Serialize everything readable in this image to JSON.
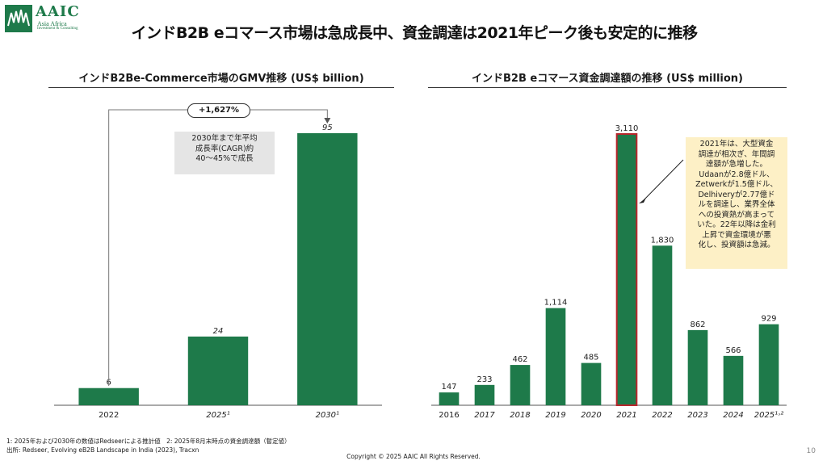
{
  "logo": {
    "main": "AAIC",
    "sub1": "Asia Africa",
    "sub2": "Investment & Consulting"
  },
  "title": "インドB2B eコマース市場は急成長中、資金調達は2021年ピーク後も安定的に推移",
  "left_note": {
    "lines": [
      "2030年まで年平均",
      "成長率(CAGR)約",
      "40〜45%で成長"
    ]
  },
  "cagr_label": "+1,627%",
  "callout": {
    "lines": [
      "2021年は、大型資金",
      "調達が相次ぎ、年間調",
      "達額が急増した。",
      "Udaanが2.8億ドル、",
      "Zetwerkが1.5億ドル、",
      "Delhiveryが2.77億ド",
      "ルを調達し、業界全体",
      "への投資熱が高まって",
      "いた。22年以降は金利",
      "上昇で資金環境が悪",
      "化し、投資額は急減。"
    ]
  },
  "colors": {
    "bar": "#1e7a4a",
    "highlight_border": "#b8262c",
    "callout_bg": "#fdf0c6"
  },
  "chart_data": [
    {
      "type": "bar",
      "title": "インドB2Be-Commerce市場のGMV推移 (US$ billion)",
      "categories": [
        "2022",
        "2025¹",
        "2030¹"
      ],
      "labels": [
        "6",
        "24",
        "95"
      ],
      "values": [
        6,
        24,
        95
      ],
      "ylim": [
        0,
        95
      ],
      "xlabel": "",
      "ylabel": "",
      "grid": false
    },
    {
      "type": "bar",
      "title": "インドB2B eコマース資金調達額の推移 (US$ million)",
      "categories": [
        "2016",
        "2017",
        "2018",
        "2019",
        "2020",
        "2021",
        "2022",
        "2023",
        "2024",
        "2025¹˒²"
      ],
      "labels": [
        "147",
        "233",
        "462",
        "1,114",
        "485",
        "3,110",
        "1,830",
        "862",
        "566",
        "929"
      ],
      "values": [
        147,
        233,
        462,
        1114,
        485,
        3110,
        1830,
        862,
        566,
        929
      ],
      "highlight_index": 5,
      "ylim": [
        0,
        3110
      ],
      "xlabel": "",
      "ylabel": "",
      "grid": false
    }
  ],
  "footnotes": {
    "line1": "1: 2025年および2030年の数値はRedseerによる推計値　2: 2025年8月末時点の資金調達額（暫定値）",
    "line2": "出所: Redseer, Evolving eB2B Landscape in India (2023), Tracxn"
  },
  "copyright": "Copyright © 2025 AAIC All Rights Reserved.",
  "page_number": "10"
}
